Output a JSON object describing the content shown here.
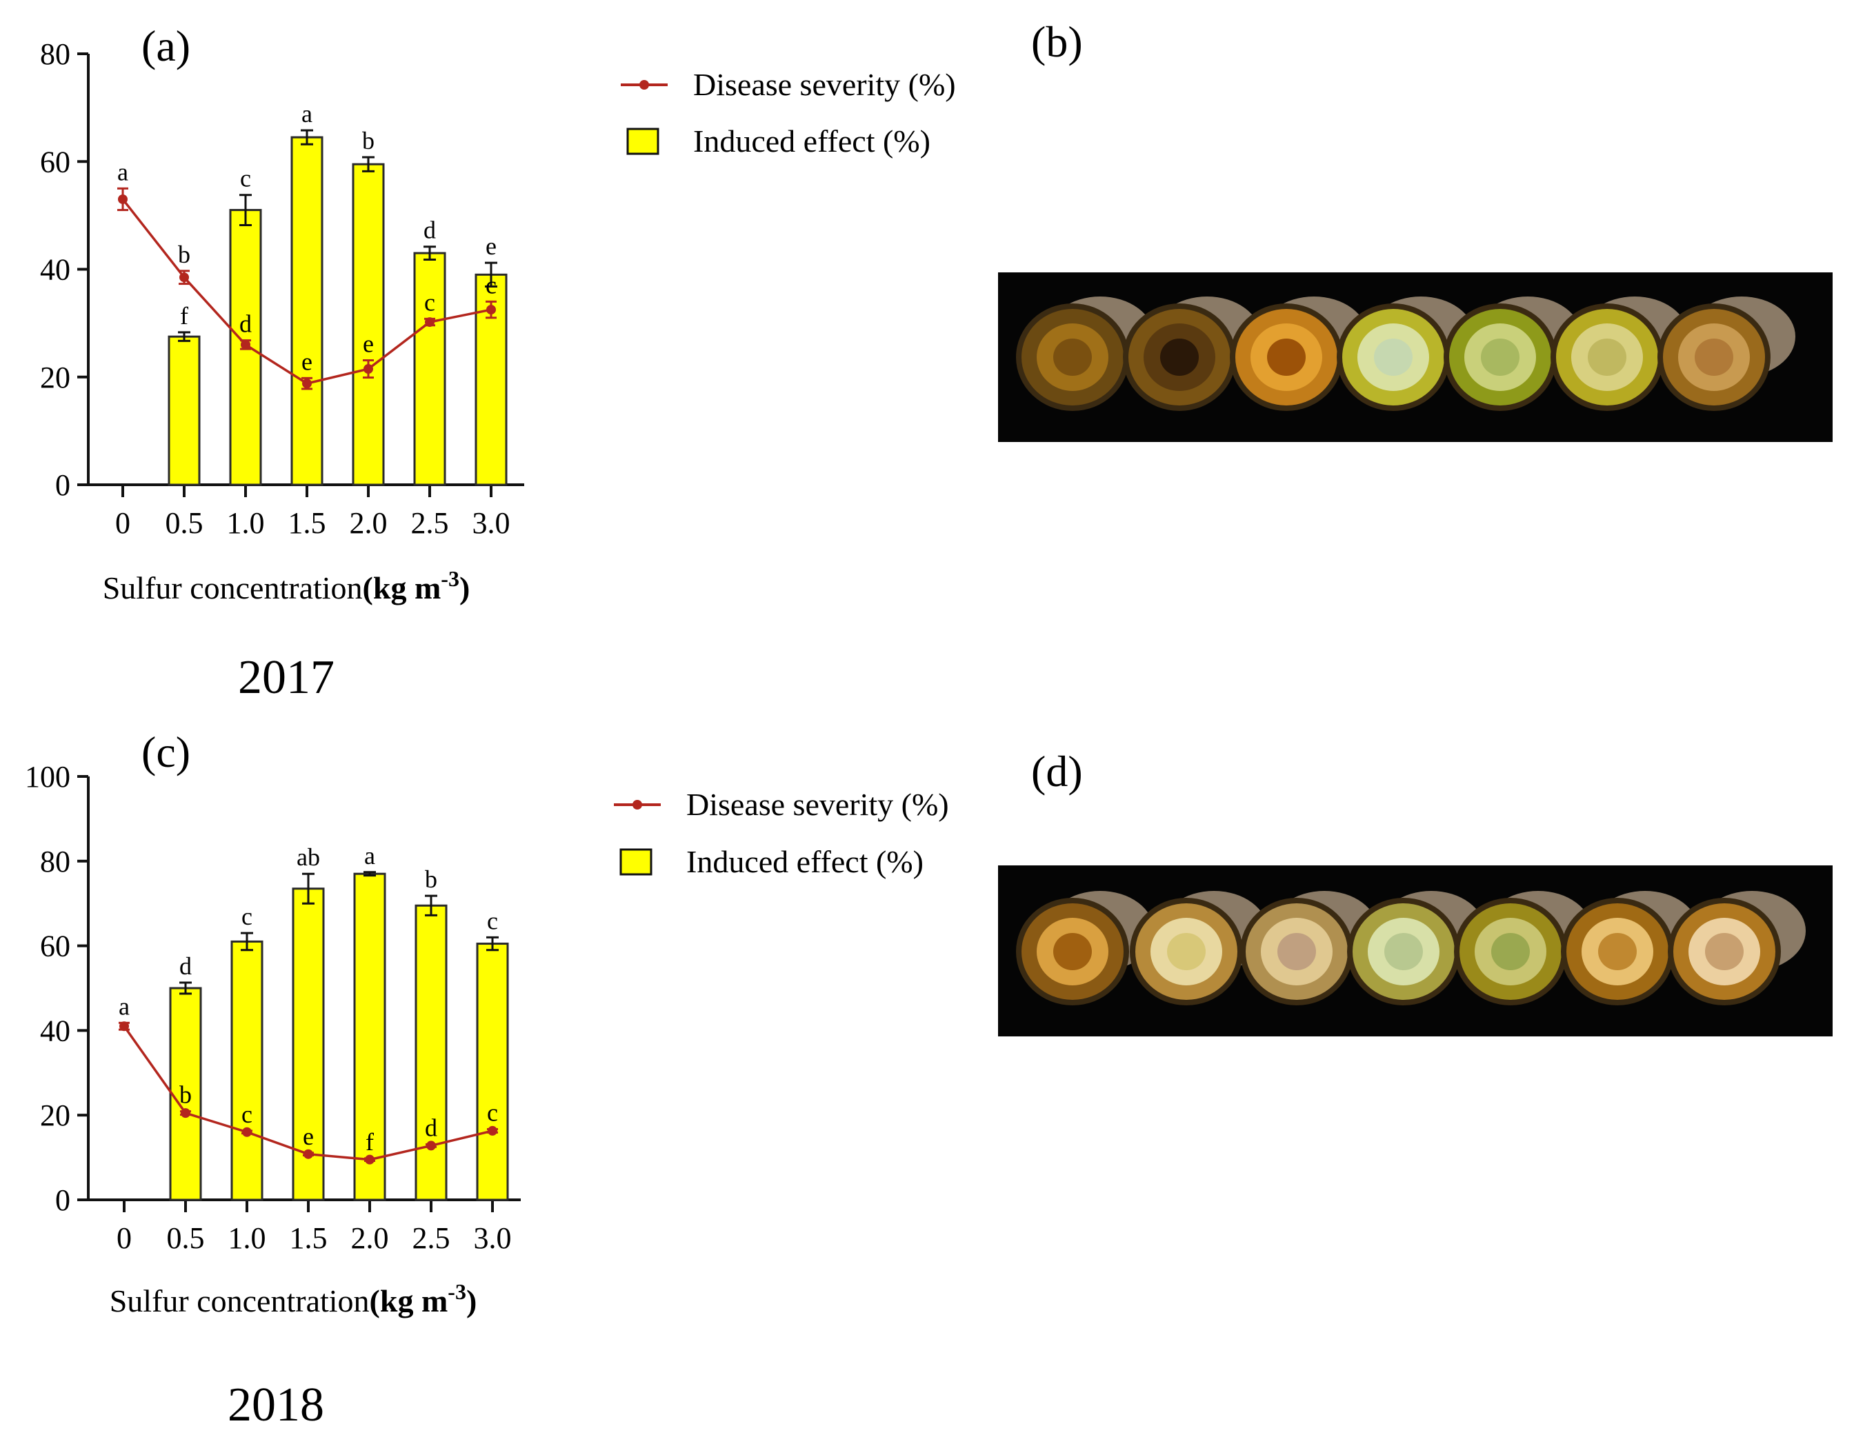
{
  "colors": {
    "bar_fill": "#ffff00",
    "bar_stroke": "#2a2a2a",
    "line": "#b3261e",
    "axis": "#111111",
    "photo_bg": "#050505"
  },
  "panel_b": {
    "letter": "(b)"
  },
  "panel_d": {
    "letter": "(d)"
  },
  "chart_data": [
    {
      "id": "a",
      "type": "bar+line",
      "panel_letter": "(a)",
      "year": "2017",
      "categories": [
        "0",
        "0.5",
        "1.0",
        "1.5",
        "2.0",
        "2.5",
        "3.0"
      ],
      "ylim": [
        0,
        80
      ],
      "yticks": [
        0,
        20,
        40,
        60,
        80
      ],
      "xlabel": "Sulfur concentration",
      "xlabel_unit": "(kg m",
      "xlabel_unit_sup": "-3",
      "xlabel_unit_close": ")",
      "legend": {
        "line": "Disease severity (%)",
        "bar": "Induced effect (%)"
      },
      "series": [
        {
          "name": "Induced effect (%)",
          "kind": "bar",
          "values": [
            null,
            27.5,
            51,
            64.5,
            59.5,
            43,
            39
          ],
          "errors": [
            null,
            0.8,
            2.8,
            1.3,
            1.3,
            1.2,
            2.2
          ],
          "letters": [
            "",
            "f",
            "c",
            "a",
            "b",
            "d",
            "e"
          ]
        },
        {
          "name": "Disease severity (%)",
          "kind": "line",
          "values": [
            53,
            38.5,
            26,
            18.8,
            21.5,
            30.2,
            32.5
          ],
          "errors": [
            2,
            1.2,
            0.8,
            1,
            1.6,
            0.6,
            1.5
          ],
          "letters": [
            "a",
            "b",
            "d",
            "e",
            "e",
            "c",
            "c"
          ]
        }
      ]
    },
    {
      "id": "c",
      "type": "bar+line",
      "panel_letter": "(c)",
      "year": "2018",
      "categories": [
        "0",
        "0.5",
        "1.0",
        "1.5",
        "2.0",
        "2.5",
        "3.0"
      ],
      "ylim": [
        0,
        100
      ],
      "yticks": [
        0,
        20,
        40,
        60,
        80,
        100
      ],
      "xlabel": "Sulfur concentration",
      "xlabel_unit": "(kg m",
      "xlabel_unit_sup": "-3",
      "xlabel_unit_close": ")",
      "legend": {
        "line": "Disease severity (%)",
        "bar": "Induced effect (%)"
      },
      "series": [
        {
          "name": "Induced effect (%)",
          "kind": "bar",
          "values": [
            null,
            50,
            61,
            73.5,
            77,
            69.5,
            60.5
          ],
          "errors": [
            null,
            1.3,
            2,
            3.5,
            0.4,
            2.3,
            1.5
          ],
          "letters": [
            "",
            "d",
            "c",
            "ab",
            "a",
            "b",
            "c"
          ]
        },
        {
          "name": "Disease severity (%)",
          "kind": "line",
          "values": [
            41,
            20.5,
            16,
            10.8,
            9.5,
            12.8,
            16.3
          ],
          "errors": [
            0.8,
            0.4,
            0.3,
            0.3,
            0.3,
            0.3,
            0.4
          ],
          "letters": [
            "a",
            "b",
            "c",
            "e",
            "f",
            "d",
            "c"
          ]
        }
      ]
    }
  ]
}
